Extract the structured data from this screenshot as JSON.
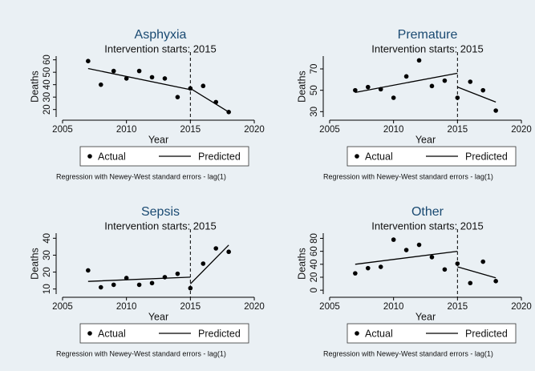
{
  "chart_data": [
    {
      "type": "scatter",
      "title": "Asphyxia",
      "subtitle": "Intervention starts: 2015",
      "xlabel": "Year",
      "ylabel": "Deaths",
      "note": "Regression with Newey-West standard errors - lag(1)",
      "vline": 2015,
      "xlim": [
        2004.5,
        2020.5
      ],
      "xticks": [
        2005,
        2010,
        2015,
        2020
      ],
      "ylim": [
        14,
        63
      ],
      "yticks": [
        20,
        30,
        40,
        50,
        60
      ],
      "series": [
        {
          "name": "Actual",
          "style": "markers",
          "color": "#000000",
          "x": [
            2007,
            2008,
            2009,
            2010,
            2011,
            2012,
            2013,
            2014,
            2015,
            2016,
            2017,
            2018
          ],
          "values": [
            59,
            40,
            51,
            45,
            51,
            46,
            45,
            30,
            37,
            39,
            26,
            18
          ]
        },
        {
          "name": "Predicted",
          "style": "line",
          "color": "#000000",
          "x": [
            2007,
            2015,
            null,
            2015,
            2018
          ],
          "values": [
            53,
            36,
            null,
            37,
            18
          ]
        }
      ]
    },
    {
      "type": "scatter",
      "title": "Premature",
      "subtitle": "Intervention starts: 2015",
      "xlabel": "Year",
      "ylabel": "Deaths",
      "note": "Regression with Newey-West standard errors - lag(1)",
      "vline": 2015,
      "xlim": [
        2004.5,
        2020.5
      ],
      "xticks": [
        2005,
        2010,
        2015,
        2020
      ],
      "ylim": [
        25,
        82
      ],
      "yticks": [
        30,
        50,
        70
      ],
      "series": [
        {
          "name": "Actual",
          "style": "markers",
          "color": "#000000",
          "x": [
            2007,
            2008,
            2009,
            2010,
            2011,
            2012,
            2013,
            2014,
            2015,
            2016,
            2017,
            2018
          ],
          "values": [
            50,
            53,
            51,
            43,
            63,
            78,
            54,
            59,
            43,
            58,
            50,
            31
          ]
        },
        {
          "name": "Predicted",
          "style": "line",
          "color": "#000000",
          "x": [
            2007,
            2015,
            null,
            2015,
            2018
          ],
          "values": [
            48,
            66,
            null,
            53,
            39
          ]
        }
      ]
    },
    {
      "type": "scatter",
      "title": "Sepsis",
      "subtitle": "Intervention starts: 2015",
      "xlabel": "Year",
      "ylabel": "Deaths",
      "note": "Regression with Newey-West standard errors - lag(1)",
      "vline": 2015,
      "xlim": [
        2004.5,
        2020.5
      ],
      "xticks": [
        2005,
        2010,
        2015,
        2020
      ],
      "ylim": [
        7,
        43
      ],
      "yticks": [
        10,
        20,
        30,
        40
      ],
      "series": [
        {
          "name": "Actual",
          "style": "markers",
          "color": "#000000",
          "x": [
            2007,
            2008,
            2009,
            2010,
            2011,
            2012,
            2013,
            2014,
            2015,
            2016,
            2017,
            2018
          ],
          "values": [
            21,
            11,
            12.5,
            16.5,
            12.5,
            13.5,
            17,
            19,
            10.5,
            25,
            34,
            32
          ]
        },
        {
          "name": "Predicted",
          "style": "line",
          "color": "#000000",
          "x": [
            2007,
            2015,
            null,
            2015,
            2018
          ],
          "values": [
            14.5,
            17,
            null,
            13,
            36
          ]
        }
      ]
    },
    {
      "type": "scatter",
      "title": "Other",
      "subtitle": "Intervention starts: 2015",
      "xlabel": "Year",
      "ylabel": "Deaths",
      "note": "Regression with Newey-West standard errors - lag(1)",
      "vline": 2015,
      "xlim": [
        2004.5,
        2020.5
      ],
      "xticks": [
        2005,
        2010,
        2015,
        2020
      ],
      "ylim": [
        -6,
        88
      ],
      "yticks": [
        0,
        20,
        40,
        60,
        80
      ],
      "series": [
        {
          "name": "Actual",
          "style": "markers",
          "color": "#000000",
          "x": [
            2007,
            2008,
            2009,
            2010,
            2011,
            2012,
            2013,
            2014,
            2015,
            2016,
            2017,
            2018
          ],
          "values": [
            26,
            34,
            36,
            78,
            62,
            70,
            51,
            32,
            41,
            11,
            44,
            14
          ]
        },
        {
          "name": "Predicted",
          "style": "line",
          "color": "#000000",
          "x": [
            2007,
            2015,
            null,
            2015,
            2018
          ],
          "values": [
            40,
            60,
            null,
            36,
            19
          ]
        }
      ]
    }
  ]
}
